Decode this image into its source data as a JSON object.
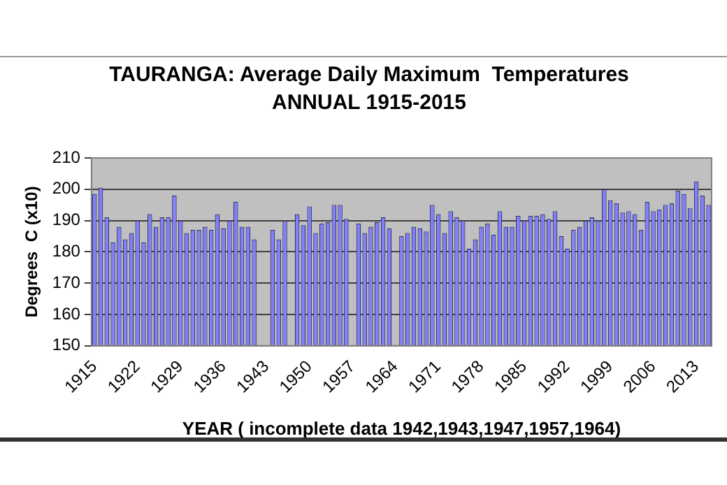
{
  "chart_data": {
    "type": "bar",
    "title": "TAURANGA: Average Daily Maximum  Temperatures",
    "subtitle": "ANNUAL 1915-2015",
    "xlabel": "YEAR ( incomplete data 1942,1943,1947,1957,1964)",
    "ylabel": "Degrees  C (x10)",
    "categories": [
      "1915",
      null,
      null,
      null,
      null,
      null,
      null,
      "1922",
      null,
      null,
      null,
      null,
      null,
      null,
      "1929",
      null,
      null,
      null,
      null,
      null,
      null,
      "1936",
      null,
      null,
      null,
      null,
      null,
      null,
      "1943",
      null,
      null,
      null,
      null,
      null,
      null,
      "1950",
      null,
      null,
      null,
      null,
      null,
      null,
      "1957",
      null,
      null,
      null,
      null,
      null,
      null,
      "1964",
      null,
      null,
      null,
      null,
      null,
      null,
      "1971",
      null,
      null,
      null,
      null,
      null,
      null,
      "1978",
      null,
      null,
      null,
      null,
      null,
      null,
      "1985",
      null,
      null,
      null,
      null,
      null,
      null,
      "1992",
      null,
      null,
      null,
      null,
      null,
      null,
      "1999",
      null,
      null,
      null,
      null,
      null,
      null,
      "2006",
      null,
      null,
      null,
      null,
      null,
      null,
      "2013",
      null,
      null
    ],
    "values": [
      198.5,
      200.5,
      191,
      183,
      188,
      184,
      186,
      190,
      183,
      192,
      188,
      191,
      191,
      198,
      190,
      186,
      187,
      187,
      188,
      187,
      192,
      187.5,
      190,
      196,
      188,
      188,
      184,
      null,
      null,
      187,
      184,
      190,
      null,
      192,
      188.5,
      194.5,
      186,
      189,
      189.5,
      195,
      195,
      190.5,
      null,
      189,
      186,
      188,
      189.5,
      191,
      187.5,
      null,
      185,
      186,
      188,
      187.5,
      186.5,
      195,
      192,
      186,
      193,
      191,
      190,
      181,
      184,
      188,
      189,
      185.5,
      193,
      188,
      188,
      191.5,
      190,
      191.5,
      191.5,
      192,
      190.5,
      193,
      185,
      181,
      187,
      188,
      190,
      191,
      190,
      200,
      196.5,
      195.5,
      192.5,
      193,
      192,
      187,
      196,
      193,
      193.5,
      195,
      195.5,
      199.5,
      198.5,
      194,
      202.5,
      198,
      195
    ],
    "color": "#8080ff",
    "ylim": [
      150,
      210
    ],
    "yticks": [
      150,
      160,
      170,
      180,
      190,
      200,
      210
    ],
    "grid": "y",
    "legend": false
  }
}
